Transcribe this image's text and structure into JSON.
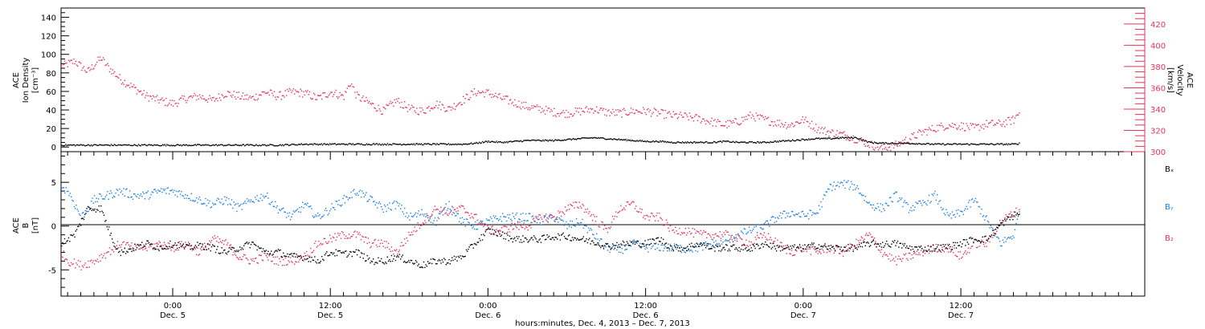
{
  "chart_data": [
    {
      "type": "scatter",
      "panel": "top",
      "ylabel_left": [
        "ACE",
        "Ion Density",
        "[cm⁻³]"
      ],
      "ylabel_right": [
        "ACE",
        "Velocity",
        "[km/s]"
      ],
      "ylim_left": [
        -5,
        150
      ],
      "ylim_right": [
        300,
        435
      ],
      "yticks_left": [
        "0",
        "20",
        "40",
        "60",
        "80",
        "100",
        "120",
        "140"
      ],
      "yticks_left_values": [
        0,
        20,
        40,
        60,
        80,
        100,
        120,
        140
      ],
      "yticks_right": [
        "300",
        "320",
        "340",
        "360",
        "380",
        "400",
        "420"
      ],
      "yticks_right_values": [
        300,
        320,
        340,
        360,
        380,
        400,
        420
      ],
      "series": [
        {
          "axis": "right",
          "color": "#e8325a",
          "x": [
            -8.5,
            -7.5,
            -6.5,
            -5.5,
            -5,
            -4,
            -3,
            -2,
            -1,
            0,
            1,
            2,
            3,
            4,
            5,
            6,
            7,
            8,
            9,
            10,
            11,
            12,
            13,
            13.5,
            14,
            15,
            16,
            17,
            18,
            19,
            20,
            21,
            22,
            23,
            24,
            25,
            26,
            27,
            28,
            29,
            30,
            31,
            32,
            33,
            34,
            35,
            36,
            37,
            38,
            39,
            40,
            41,
            42,
            43,
            44,
            45,
            46,
            47,
            48,
            49,
            50,
            51,
            52,
            53,
            54,
            55,
            56,
            57,
            58,
            59,
            60,
            61,
            62,
            63,
            64,
            64.5
          ],
          "y": [
            380,
            385,
            375,
            388,
            380,
            368,
            360,
            352,
            348,
            345,
            350,
            352,
            348,
            355,
            352,
            350,
            356,
            352,
            356,
            355,
            350,
            356,
            352,
            365,
            352,
            345,
            338,
            348,
            340,
            338,
            345,
            340,
            348,
            356,
            355,
            350,
            346,
            342,
            340,
            337,
            336,
            338,
            340,
            337,
            336,
            338,
            338,
            336,
            334,
            333,
            331,
            328,
            325,
            328,
            334,
            330,
            327,
            325,
            330,
            322,
            318,
            316,
            312,
            307,
            303,
            306,
            312,
            318,
            322,
            325,
            324,
            322,
            326,
            326,
            330,
            338
          ]
        },
        {
          "axis": "left",
          "color": "#000000",
          "x": [
            -8.5,
            -6,
            -4,
            -2,
            0,
            2,
            4,
            6,
            8,
            10,
            12,
            14,
            16,
            18,
            20,
            22,
            23,
            24,
            25,
            26,
            27,
            28,
            29,
            30,
            31,
            32,
            33,
            34,
            35,
            36,
            37,
            38,
            39,
            40,
            41,
            42,
            43,
            44,
            45,
            46,
            47,
            48,
            49,
            50,
            51,
            52,
            53,
            54,
            55,
            56,
            58,
            60,
            62,
            64,
            64.5
          ],
          "y": [
            2,
            2,
            2,
            2,
            2,
            2,
            2,
            2,
            2,
            3,
            3,
            3,
            3,
            3,
            3,
            3,
            4,
            6,
            5,
            6,
            7,
            7,
            7,
            8,
            9,
            10,
            9,
            8,
            7,
            6,
            6,
            5,
            5,
            5,
            5,
            6,
            5,
            5,
            5,
            6,
            7,
            8,
            9,
            9,
            10,
            10,
            5,
            4,
            4,
            4,
            3,
            3,
            3,
            3,
            4
          ]
        }
      ]
    },
    {
      "type": "scatter",
      "panel": "bottom",
      "ylabel": [
        "ACE",
        "B",
        "[nT]"
      ],
      "ylim": [
        -8,
        8.5
      ],
      "yticks": [
        "-5",
        "0",
        "5"
      ],
      "ytick_values": [
        -5,
        0,
        5
      ],
      "legend": [
        "Bₓ",
        "Bᵧ",
        "B₂"
      ],
      "legend_placement": "right",
      "series": [
        {
          "name": "Bₓ",
          "color": "#000000",
          "x": [
            -8.5,
            -7.5,
            -6.5,
            -5.5,
            -4.5,
            -4,
            -3,
            -2,
            -1,
            0,
            1,
            2,
            3,
            4,
            5,
            6,
            7,
            8,
            9,
            10,
            11,
            12,
            13,
            14,
            15,
            16,
            17,
            18,
            19,
            20,
            21,
            22,
            23,
            24,
            25,
            26,
            27,
            28,
            29,
            30,
            31,
            32,
            33,
            34,
            35,
            36,
            37,
            38,
            39,
            40,
            41,
            42,
            43,
            44,
            45,
            46,
            47,
            48,
            49,
            50,
            51,
            52,
            53,
            54,
            55,
            56,
            57,
            58,
            59,
            60,
            61,
            62,
            63,
            64,
            64.5
          ],
          "y": [
            -2,
            -1,
            2,
            2,
            -2,
            -3,
            -2.5,
            -2,
            -2.5,
            -2,
            -2.5,
            -2.2,
            -2.5,
            -3,
            -2.5,
            -2,
            -3,
            -3,
            -3.5,
            -3.5,
            -4,
            -3,
            -3.2,
            -3,
            -4,
            -4,
            -3.5,
            -4,
            -4.5,
            -4,
            -4,
            -3.5,
            -2,
            -0.5,
            -1,
            -1.5,
            -1.5,
            -1.5,
            -1.2,
            -1.2,
            -1.5,
            -1.8,
            -2.3,
            -2.1,
            -2,
            -2,
            -1.5,
            -2.5,
            -2.5,
            -2,
            -2.5,
            -2.5,
            -2.5,
            -2.6,
            -2,
            -2.5,
            -2.5,
            -2.5,
            -2.2,
            -2.5,
            -2.5,
            -2.5,
            -2,
            -2.1,
            -2,
            -2.5,
            -2.6,
            -2.5,
            -2.4,
            -2,
            -1.5,
            -1.5,
            0.2,
            1.2,
            1.5
          ]
        },
        {
          "name": "Bᵧ",
          "color": "#1a80e6",
          "x": [
            -8.5,
            -8,
            -7,
            -6,
            -5,
            -4,
            -3,
            -2,
            -1,
            0,
            1,
            2,
            3,
            4,
            5,
            6,
            7,
            8,
            9,
            10,
            11,
            12,
            13,
            14,
            15,
            16,
            17,
            18,
            19,
            20,
            21,
            22,
            23,
            24,
            25,
            26,
            27,
            28,
            29,
            30,
            31,
            32,
            33,
            34,
            35,
            36,
            37,
            38,
            39,
            40,
            41,
            42,
            43,
            44,
            45,
            46,
            47,
            48,
            49,
            50,
            51,
            52,
            53,
            54,
            55,
            56,
            57,
            58,
            59,
            60,
            61,
            62,
            63,
            64,
            64.5
          ],
          "y": [
            4.5,
            4,
            1,
            3,
            3.5,
            4,
            3.5,
            3.5,
            4,
            4,
            3.5,
            3,
            2.5,
            3,
            2,
            3,
            3.5,
            2,
            1,
            2.5,
            1,
            2,
            3,
            4,
            3,
            2,
            2.5,
            1,
            1.5,
            0.5,
            2.5,
            0.5,
            0,
            0.5,
            1,
            1,
            1,
            0.5,
            1,
            0,
            0.5,
            -1,
            -2.5,
            -2.8,
            -2,
            -2.5,
            -2.4,
            -2.5,
            -2.6,
            -2.5,
            -2,
            -2,
            -1,
            -0.5,
            0,
            1,
            1.5,
            1.2,
            1.5,
            4.5,
            4.8,
            4.5,
            2.5,
            2,
            3.5,
            2,
            2.5,
            3.5,
            1,
            1.5,
            3,
            0.5,
            -2,
            -1,
            2
          ]
        },
        {
          "name": "B₂",
          "color": "#e8325a",
          "x": [
            -8.5,
            -8,
            -7,
            -6,
            -5,
            -4,
            -3,
            -2,
            -1,
            0,
            1,
            2,
            3,
            4,
            5,
            6,
            7,
            8,
            9,
            10,
            11,
            12,
            13,
            14,
            15,
            16,
            17,
            18,
            19,
            20,
            21,
            22,
            23,
            24,
            25,
            26,
            27,
            28,
            29,
            30,
            31,
            32,
            33,
            34,
            35,
            36,
            37,
            38,
            39,
            40,
            41,
            42,
            43,
            44,
            45,
            46,
            47,
            48,
            49,
            50,
            51,
            52,
            53,
            54,
            55,
            56,
            57,
            58,
            59,
            60,
            61,
            62,
            63,
            64,
            64.5
          ],
          "y": [
            -3,
            -4,
            -4.5,
            -4,
            -3,
            -2,
            -2.5,
            -2.5,
            -2,
            -2.5,
            -2,
            -3,
            -1.5,
            -2,
            -3.5,
            -4,
            -3.5,
            -4,
            -4,
            -3.5,
            -2,
            -1.5,
            -1,
            -1,
            -2,
            -2,
            -3,
            -1,
            0.5,
            2,
            1.5,
            2,
            1,
            -0.5,
            -0.5,
            0,
            0,
            1,
            1,
            2,
            2.5,
            1,
            -0.5,
            2,
            2.5,
            1,
            1,
            -0.5,
            -0.5,
            -1,
            -1,
            -1,
            -1.5,
            -2,
            -1,
            -2,
            -3,
            -2.5,
            -3,
            -2.5,
            -3,
            -2,
            -1,
            -3,
            -4,
            -3.5,
            -3,
            -2.5,
            -2.5,
            -3.5,
            -2,
            -2,
            0.5,
            1.5,
            1.8
          ]
        }
      ]
    }
  ],
  "x_axis": {
    "range_hours": [
      -8.5,
      74
    ],
    "ticks": [
      {
        "time": "0:00",
        "day": "Dec. 5",
        "hour": 0
      },
      {
        "time": "12:00",
        "day": "Dec. 5",
        "hour": 12
      },
      {
        "time": "0:00",
        "day": "Dec. 6",
        "hour": 24
      },
      {
        "time": "12:00",
        "day": "Dec. 6",
        "hour": 36
      },
      {
        "time": "0:00",
        "day": "Dec. 7",
        "hour": 48
      },
      {
        "time": "12:00",
        "day": "Dec. 7",
        "hour": 60
      }
    ],
    "label": "hours:minutes, Dec.  4, 2013 – Dec.  7, 2013"
  }
}
